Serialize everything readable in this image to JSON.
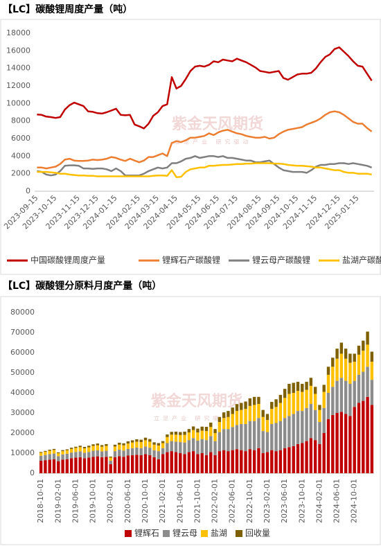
{
  "watermark": {
    "name": "紫金天风期货",
    "slogan": "立足产业 研究驱动"
  },
  "chart_data": [
    {
      "type": "line",
      "title": "【LC】碳酸锂周度产量（吨）",
      "categories": [
        "2023-09-15",
        null,
        null,
        null,
        "2023-10-15",
        null,
        null,
        null,
        null,
        "2023-11-15",
        null,
        null,
        null,
        "2023-12-15",
        null,
        null,
        null,
        "2024-01-15",
        null,
        null,
        null,
        null,
        "2024-02-15",
        null,
        null,
        null,
        "2024-03-15",
        null,
        null,
        null,
        "2024-04-15",
        null,
        null,
        null,
        null,
        "2024-05-15",
        null,
        null,
        null,
        "2024-06-15",
        null,
        null,
        null,
        "2024-07-15",
        null,
        null,
        null,
        null,
        "2024-08-15",
        null,
        null,
        null,
        "2024-09-15",
        null,
        null,
        null,
        "2024-10-15",
        null,
        null,
        null,
        "2024-11-15",
        null,
        null,
        null,
        null,
        "2024-12-15",
        null,
        null,
        null,
        "2025-01-15",
        null,
        null,
        null
      ],
      "ylim": [
        0,
        18000
      ],
      "yticks": [
        0,
        2000,
        4000,
        6000,
        8000,
        10000,
        12000,
        14000,
        16000,
        18000
      ],
      "grid": false,
      "series": [
        {
          "name": "中国碳酸锂周度产量",
          "color": "#c00000",
          "values": [
            8750,
            8700,
            8500,
            8450,
            8350,
            8450,
            9300,
            9800,
            10100,
            9900,
            9700,
            9100,
            9050,
            8900,
            8850,
            9000,
            9200,
            9400,
            8700,
            8650,
            8700,
            7600,
            7400,
            7150,
            7700,
            8600,
            9000,
            9700,
            9900,
            13000,
            11700,
            12000,
            12800,
            13700,
            14200,
            14300,
            14200,
            14400,
            14800,
            14700,
            15000,
            14900,
            14800,
            15100,
            14900,
            14700,
            14400,
            14100,
            13700,
            13600,
            13500,
            13600,
            13700,
            12900,
            12700,
            13000,
            13300,
            13400,
            13400,
            13500,
            14000,
            14700,
            15300,
            15600,
            16200,
            16400,
            15900,
            15400,
            14800,
            14300,
            14200,
            13400,
            12600
          ]
        },
        {
          "name": "锂辉石产碳酸锂",
          "color": "#ed7d31",
          "values": [
            2700,
            2700,
            2600,
            2700,
            2800,
            3100,
            3600,
            3700,
            3500,
            3450,
            3450,
            3500,
            3600,
            3550,
            3600,
            3700,
            3900,
            3800,
            3600,
            3450,
            3700,
            3500,
            3300,
            3500,
            3900,
            3900,
            4100,
            4300,
            4000,
            5500,
            5700,
            5600,
            5800,
            6100,
            6100,
            6200,
            6300,
            6600,
            6400,
            6700,
            6900,
            7000,
            6800,
            6600,
            6500,
            6300,
            6200,
            6100,
            6100,
            6200,
            6000,
            6100,
            6500,
            6800,
            7000,
            7100,
            7200,
            7300,
            7600,
            7800,
            8000,
            8300,
            8700,
            9000,
            9100,
            9000,
            8700,
            8300,
            7900,
            7700,
            7700,
            7200,
            6800
          ]
        },
        {
          "name": "锂云母产碳酸锂",
          "color": "#7f7f7f",
          "values": [
            2300,
            2200,
            1900,
            1800,
            1900,
            2300,
            2900,
            2950,
            2950,
            2900,
            2600,
            2600,
            2550,
            2600,
            2600,
            2500,
            2300,
            2600,
            2300,
            1800,
            1800,
            1800,
            1800,
            2000,
            2300,
            2500,
            2700,
            2600,
            2700,
            3200,
            3200,
            3400,
            3700,
            3800,
            4000,
            3800,
            3900,
            4000,
            4000,
            3900,
            4000,
            3800,
            3800,
            3700,
            3600,
            3500,
            3500,
            3300,
            3300,
            3400,
            3500,
            3100,
            2700,
            2400,
            2300,
            2200,
            2200,
            2200,
            2100,
            2400,
            2800,
            3000,
            3000,
            3100,
            3100,
            3200,
            3200,
            3100,
            3200,
            3100,
            3000,
            2900,
            2700
          ]
        },
        {
          "name": "盐湖产碳酸锂",
          "color": "#ffc000",
          "values": [
            2200,
            2200,
            2200,
            2150,
            2100,
            2000,
            2000,
            1900,
            1850,
            1800,
            1800,
            1750,
            1750,
            1700,
            1700,
            1700,
            1700,
            1700,
            1700,
            1700,
            1700,
            1700,
            1700,
            1700,
            1700,
            1750,
            1800,
            1800,
            1750,
            2400,
            1600,
            1650,
            2200,
            2500,
            2600,
            2700,
            2700,
            2900,
            2900,
            2950,
            3000,
            3000,
            3050,
            3100,
            3100,
            3150,
            3150,
            3200,
            3200,
            3200,
            3200,
            3150,
            3150,
            3100,
            3000,
            2950,
            2900,
            2900,
            2850,
            2800,
            2700,
            2700,
            2600,
            2500,
            2400,
            2400,
            2200,
            2100,
            2100,
            2000,
            2000,
            2000,
            1900
          ]
        }
      ]
    },
    {
      "type": "bar",
      "stacked": true,
      "title": "【LC】碳酸锂分原料月度产量（吨）",
      "categories": [
        "2018-10-01",
        null,
        null,
        null,
        "2019-02-01",
        null,
        null,
        null,
        "2019-06-01",
        null,
        null,
        null,
        "2019-10-01",
        null,
        null,
        null,
        "2020-02-01",
        null,
        null,
        null,
        "2020-06-01",
        null,
        null,
        null,
        "2020-10-01",
        null,
        null,
        null,
        "2021-02-01",
        null,
        null,
        null,
        "2021-06-01",
        null,
        null,
        null,
        "2021-10-01",
        null,
        null,
        null,
        "2022-02-01",
        null,
        null,
        null,
        "2022-06-01",
        null,
        null,
        null,
        "2022-10-01",
        null,
        null,
        null,
        "2023-02-01",
        null,
        null,
        null,
        "2023-06-01",
        null,
        null,
        null,
        "2023-10-01",
        null,
        null,
        null,
        "2024-02-01",
        null,
        null,
        null,
        "2024-06-01",
        null,
        null,
        null,
        "2024-10-01",
        null,
        null,
        null,
        null
      ],
      "ylim": [
        0,
        80000
      ],
      "yticks": [
        0,
        10000,
        20000,
        30000,
        40000,
        50000,
        60000,
        70000,
        80000
      ],
      "grid": false,
      "series": [
        {
          "name": "锂辉石",
          "color": "#c00000",
          "values": [
            6200,
            6500,
            6800,
            7000,
            6000,
            6800,
            7000,
            7500,
            7800,
            8000,
            7500,
            7800,
            8200,
            8400,
            8000,
            8200,
            4500,
            8000,
            8500,
            8200,
            8800,
            9000,
            9200,
            9000,
            9500,
            9000,
            8000,
            7000,
            9500,
            10500,
            11000,
            10500,
            10000,
            9500,
            10500,
            11000,
            9500,
            10000,
            9000,
            10500,
            9000,
            11000,
            11500,
            11000,
            11500,
            12000,
            11500,
            11000,
            12000,
            11500,
            12500,
            10000,
            10500,
            11500,
            11000,
            11500,
            12500,
            13000,
            13500,
            14500,
            15000,
            16000,
            17500,
            16500,
            14500,
            20000,
            27000,
            29000,
            30000,
            30500,
            29500,
            28500,
            33000,
            35000,
            36000,
            38000,
            34000
          ]
        },
        {
          "name": "锂云母",
          "color": "#8c8c8c",
          "values": [
            2500,
            2600,
            2700,
            2800,
            2500,
            2600,
            2700,
            2800,
            2800,
            2900,
            2700,
            2800,
            3000,
            3000,
            2900,
            3000,
            1800,
            3000,
            3200,
            3100,
            3300,
            3500,
            3600,
            3500,
            3800,
            3700,
            3400,
            4000,
            3000,
            4500,
            5000,
            5200,
            5500,
            5800,
            6000,
            6500,
            6800,
            7000,
            7500,
            8000,
            7000,
            9500,
            10500,
            11000,
            11500,
            12000,
            13000,
            13500,
            14000,
            14500,
            15000,
            11000,
            10000,
            13000,
            14000,
            14500,
            15000,
            15500,
            16000,
            16500,
            16000,
            16500,
            17000,
            15000,
            11000,
            12500,
            13000,
            14000,
            16000,
            17000,
            16500,
            16000,
            13000,
            14000,
            14500,
            15000,
            12500
          ]
        },
        {
          "name": "盐湖",
          "color": "#ffc000",
          "values": [
            1500,
            1600,
            1700,
            1800,
            1500,
            1600,
            1700,
            1800,
            2000,
            2100,
            2200,
            2300,
            2400,
            2500,
            2300,
            2400,
            1500,
            2300,
            2500,
            2600,
            2700,
            2800,
            2900,
            3000,
            3100,
            3000,
            2800,
            2800,
            2500,
            3000,
            3200,
            3500,
            3500,
            3800,
            3800,
            4000,
            4000,
            4200,
            4500,
            4500,
            4000,
            5000,
            5500,
            6000,
            6500,
            7000,
            7000,
            7500,
            7500,
            8000,
            7000,
            7000,
            6000,
            7500,
            8000,
            9000,
            10000,
            11000,
            10500,
            10000,
            9500,
            9000,
            9000,
            8000,
            6000,
            8000,
            9000,
            10000,
            11000,
            12000,
            11000,
            10500,
            9500,
            10000,
            10500,
            11000,
            9000
          ]
        },
        {
          "name": "回收量",
          "color": "#7f6000",
          "values": [
            400,
            400,
            500,
            500,
            400,
            500,
            500,
            600,
            600,
            700,
            700,
            800,
            800,
            900,
            800,
            900,
            500,
            900,
            1000,
            1000,
            1100,
            1100,
            1200,
            1200,
            1300,
            1300,
            1200,
            1200,
            1000,
            1300,
            1400,
            1500,
            1500,
            1600,
            1700,
            1800,
            1900,
            2000,
            2100,
            2200,
            2000,
            2500,
            2800,
            3000,
            3200,
            3400,
            3500,
            3700,
            3800,
            4000,
            3500,
            3500,
            3000,
            3500,
            3800,
            4000,
            4500,
            5000,
            5000,
            4500,
            4000,
            4000,
            4000,
            3500,
            2500,
            3500,
            4000,
            4500,
            5000,
            5500,
            5000,
            4500,
            4000,
            4500,
            5000,
            6500,
            5000
          ]
        }
      ]
    }
  ]
}
